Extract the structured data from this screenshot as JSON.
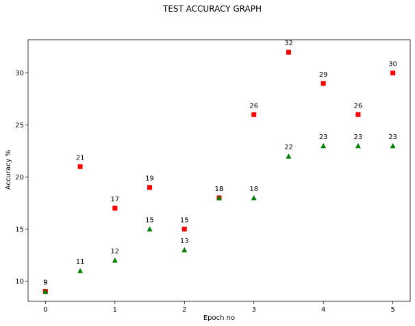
{
  "chart_data": {
    "type": "scatter",
    "title": "TEST ACCURACY GRAPH",
    "xlabel": "Epoch no",
    "ylabel": "Accuracy %",
    "xlim": [
      -0.25,
      5.25
    ],
    "ylim": [
      8.05,
      33.2
    ],
    "x_ticks": [
      0,
      1,
      2,
      3,
      4,
      5
    ],
    "y_ticks": [
      10,
      15,
      20,
      25,
      30
    ],
    "grid": false,
    "legend": "none",
    "series": [
      {
        "marker": "square",
        "color": "#ff0000",
        "x": [
          0,
          0.5,
          1,
          1.5,
          2,
          2.5,
          3,
          3.5,
          4,
          4.5,
          5
        ],
        "values": [
          9,
          21,
          17,
          19,
          15,
          18,
          26,
          32,
          29,
          26,
          30
        ],
        "labels": [
          "9",
          "21",
          "17",
          "19",
          "15",
          "18",
          "26",
          "32",
          "29",
          "26",
          "30"
        ]
      },
      {
        "marker": "triangle",
        "color": "#008000",
        "x": [
          0,
          0.5,
          1,
          1.5,
          2,
          2.5,
          3,
          3.5,
          4,
          4.5,
          5
        ],
        "values": [
          9,
          11,
          12,
          15,
          13,
          18,
          18,
          22,
          23,
          23,
          23
        ],
        "labels": [
          "9",
          "11",
          "12",
          "15",
          "13",
          "18",
          "18",
          "22",
          "23",
          "23",
          "23"
        ]
      }
    ]
  }
}
